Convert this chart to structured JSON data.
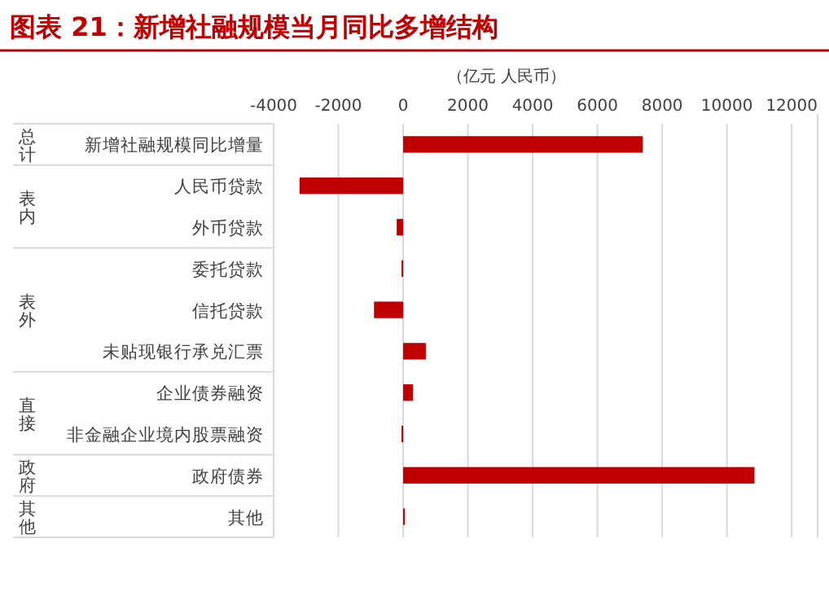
{
  "chart_data": {
    "type": "bar",
    "orientation": "horizontal",
    "title": "图表 21：新增社融规模当月同比多增结构",
    "xlabel": "（亿元 人民币）",
    "categories": [
      "新增社融规模同比增量",
      "人民币贷款",
      "外币贷款",
      "委托贷款",
      "信托贷款",
      "未贴现银行承兑汇票",
      "企业债券融资",
      "非金融企业境内股票融资",
      "政府债券",
      "其他"
    ],
    "values": [
      7400,
      -3200,
      -200,
      -50,
      -900,
      700,
      300,
      -50,
      10850,
      50
    ],
    "color": "#c00000",
    "xlim": [
      -4000,
      12800
    ],
    "xticks": [
      -4000,
      -2000,
      0,
      2000,
      4000,
      6000,
      8000,
      10000,
      12000
    ],
    "grid": "x",
    "annotations": [
      "总计",
      "表内",
      "表外",
      "直接",
      "政府",
      "其他"
    ]
  }
}
